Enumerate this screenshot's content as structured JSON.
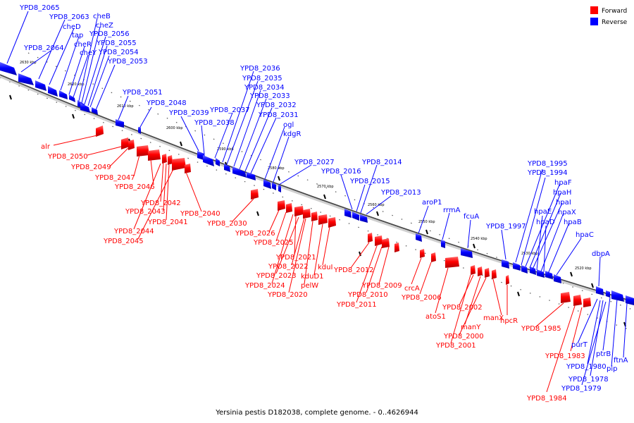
{
  "caption": "Yersinia pestis D182038, complete genome. - 0..4626944",
  "legend": {
    "forward_label": "Forward",
    "reverse_label": "Reverse",
    "forward_color": "#ff0000",
    "reverse_color": "#0000ff"
  },
  "scale_labels": [
    "2630 kbp",
    "2620 kbp",
    "2610 kbp",
    "2600 kbp",
    "2590 kbp",
    "2580 kbp",
    "2570 kbp",
    "2560 kbp",
    "2550 kbp",
    "2540 kbp",
    "2530 kbp",
    "2520 kbp"
  ],
  "reverse_genes": [
    "YPD8_2065",
    "YPD8_2064",
    "YPD8_2063",
    "cheD",
    "tap",
    "cheR",
    "cheY",
    "cheB",
    "cheZ",
    "YPD8_2056",
    "YPD8_2055",
    "YPD8_2054",
    "YPD8_2053",
    "YPD8_2051",
    "YPD8_2048",
    "YPD8_2039",
    "YPD8_2038",
    "YPD8_2037",
    "YPD8_2036",
    "YPD8_2035",
    "YPD8_2034",
    "YPD8_2033",
    "YPD8_2032",
    "YPD8_2031",
    "ogl",
    "kdgR",
    "YPD8_2027",
    "YPD8_2016",
    "YPD8_2015",
    "YPD8_2014",
    "YPD8_2013",
    "aroP1",
    "rrmA",
    "fcuA",
    "YPD8_1997",
    "YPD8_1995",
    "YPD8_1994",
    "hpaF",
    "hpaH",
    "hpaI",
    "hpaE",
    "hpaX",
    "hpaD",
    "hpaB",
    "hpaC",
    "dbpA",
    "ptrB",
    "pip",
    "ftnA",
    "purT",
    "YPD8_1980",
    "YPD8_1978",
    "YPD8_1979"
  ],
  "forward_genes": [
    "alr",
    "YPD8_2050",
    "YPD8_2049",
    "YPD8_2047",
    "YPD8_2046",
    "YPD8_2042",
    "YPD8_2043",
    "YPD8_2041",
    "YPD8_2040",
    "YPD8_2044",
    "YPD8_2045",
    "YPD8_2030",
    "YPD8_2026",
    "YPD8_2025",
    "YPD8_2021",
    "YPD8_2022",
    "YPD8_2023",
    "YPD8_2024",
    "kduI",
    "kduD1",
    "pelW",
    "YPD8_2020",
    "YPD8_2012",
    "YPD8_2009",
    "YPD8_2010",
    "YPD8_2011",
    "crcA",
    "YPD8_2006",
    "atoS1",
    "YPD8_2002",
    "manY",
    "YPD8_2000",
    "YPD8_2001",
    "manX",
    "hpcR",
    "YPD8_1985",
    "YPD8_1983",
    "YPD8_1984"
  ]
}
